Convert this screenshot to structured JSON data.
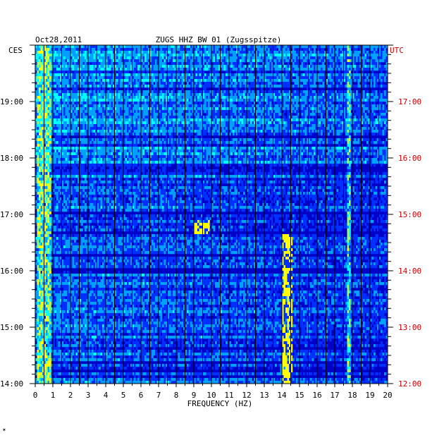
{
  "header": {
    "date": "Oct28,2011",
    "station": "ZUGS HHZ BW 01 (Zugsspitze)"
  },
  "chart_data": {
    "type": "heatmap",
    "title": "ZUGS HHZ BW 01 (Zugsspitze)",
    "date": "Oct28,2011",
    "xlabel": "FREQUENCY (HZ)",
    "left_axis_label": "CES",
    "right_axis_label": "UTC",
    "xlim": [
      0,
      20
    ],
    "x_ticks": [
      "0",
      "1",
      "2",
      "3",
      "4",
      "5",
      "6",
      "7",
      "8",
      "9",
      "10",
      "11",
      "12",
      "13",
      "14",
      "15",
      "16",
      "17",
      "18",
      "19",
      "20"
    ],
    "left_ticks": [
      "14:00",
      "15:00",
      "16:00",
      "17:00",
      "18:00",
      "19:00"
    ],
    "right_ticks": [
      "12:00",
      "13:00",
      "14:00",
      "15:00",
      "16:00",
      "17:00"
    ],
    "time_range_ces": [
      "14:00",
      "20:00"
    ],
    "grid": true,
    "colormap": [
      "#00007a",
      "#0000c8",
      "#0030ff",
      "#00a0ff",
      "#00ffff",
      "#a0ff60",
      "#ffff00",
      "#ff8000",
      "#ff0000"
    ],
    "features": [
      {
        "description": "strong low-frequency energy",
        "freq_hz": [
          0.1,
          0.9
        ],
        "level": 0.8
      },
      {
        "description": "persistent narrow line",
        "freq_hz": 17.8,
        "level": 0.7
      },
      {
        "description": "intermittent tremor band",
        "freq_hz": [
          14.0,
          14.6
        ],
        "time_ces": [
          "14:00",
          "16:40"
        ],
        "level": 0.75
      },
      {
        "description": "transient burst",
        "freq_hz": [
          9.0,
          9.9
        ],
        "time_ces": [
          "16:40",
          "16:55"
        ],
        "level": 0.7
      },
      {
        "description": "transient burst",
        "freq_hz": [
          13.9,
          14.4
        ],
        "time_ces": [
          "14:10",
          "14:20"
        ],
        "level": 0.8
      }
    ]
  },
  "colors": {
    "background": "#ffffff",
    "axis_text": "#000000",
    "utc_text": "#cc0000",
    "grid": "#000000"
  }
}
